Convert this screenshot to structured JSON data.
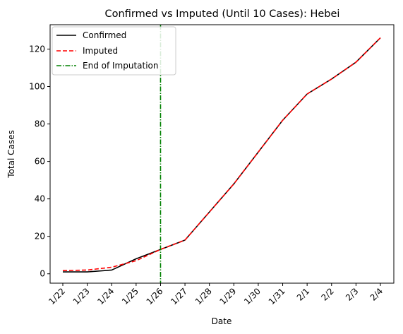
{
  "chart_data": {
    "type": "line",
    "title": "Confirmed vs Imputed (Until 10 Cases): Hebei",
    "xlabel": "Date",
    "ylabel": "Total Cases",
    "categories": [
      "1/22",
      "1/23",
      "1/24",
      "1/25",
      "1/26",
      "1/27",
      "1/28",
      "1/29",
      "1/30",
      "1/31",
      "2/1",
      "2/2",
      "2/3",
      "2/4"
    ],
    "ylim": [
      -5,
      133
    ],
    "yticks": [
      0,
      20,
      40,
      60,
      80,
      100,
      120
    ],
    "grid": false,
    "legend_position": "top-left",
    "series": [
      {
        "name": "Confirmed",
        "color": "#000000",
        "style": "solid",
        "values": [
          1,
          1,
          2,
          8,
          13,
          18,
          33,
          48,
          65,
          82,
          96,
          104,
          113,
          126
        ]
      },
      {
        "name": "Imputed",
        "color": "#ff0000",
        "style": "dashed",
        "values": [
          1.7,
          2,
          3.5,
          7,
          13,
          18,
          33,
          48,
          65,
          82,
          96,
          104,
          113,
          126
        ]
      }
    ],
    "vline": {
      "name": "End of Imputation",
      "color": "#008000",
      "style": "dashdot",
      "x": "1/26"
    }
  }
}
